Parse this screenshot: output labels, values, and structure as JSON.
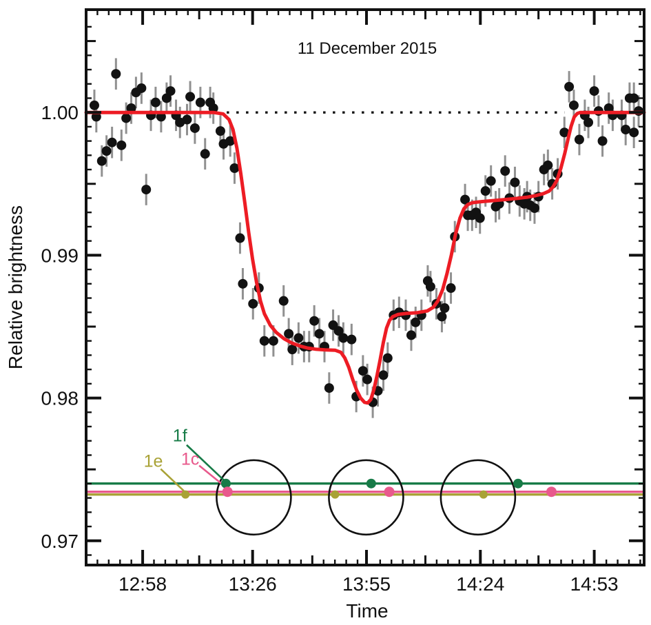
{
  "chart_data": {
    "type": "scatter",
    "title": "11 December 2015",
    "xlabel": "Time",
    "ylabel": "Relative brightness",
    "x_domain_minutes_after_1200": [
      43.6,
      185.7
    ],
    "y_domain": [
      0.9683,
      1.0072
    ],
    "x_ticks": {
      "minutes": [
        58,
        86,
        115,
        144,
        173
      ],
      "labels": [
        "12:58",
        "13:26",
        "13:55",
        "14:24",
        "14:53"
      ],
      "minor_step_minutes": 2.88
    },
    "y_ticks": {
      "values": [
        0.97,
        0.98,
        0.99,
        1.0
      ],
      "labels": [
        "0.97",
        "0.98",
        "0.99",
        "1.00"
      ],
      "minor_step": 0.001
    },
    "baseline": {
      "value": 1.0,
      "from_minute": 79.4,
      "to_minute": 165.4
    },
    "colors": {
      "model": "#ed1c24",
      "point": "#121212",
      "errorbar": "#909090",
      "frame": "#111111",
      "planet_f": "#177b47",
      "planet_c": "#e8598c",
      "planet_e": "#a9a236"
    },
    "series": [
      {
        "name": "observed",
        "kind": "scatter",
        "error": 0.0011,
        "point_radius": 7,
        "points": [
          [
            45.7,
            1.0005
          ],
          [
            46.2,
            0.9997
          ],
          [
            47.6,
            0.9966
          ],
          [
            48.8,
            0.9973
          ],
          [
            50.2,
            0.9979
          ],
          [
            51.2,
            1.0027
          ],
          [
            52.6,
            0.9977
          ],
          [
            53.8,
            0.9996
          ],
          [
            55.1,
            1.0003
          ],
          [
            56.3,
            1.0014
          ],
          [
            57.7,
            1.0017
          ],
          [
            58.9,
            0.9946
          ],
          [
            60.1,
            0.9998
          ],
          [
            61.3,
            1.0007
          ],
          [
            62.7,
            0.9997
          ],
          [
            64.1,
            1.001
          ],
          [
            65.1,
            1.0015
          ],
          [
            66.5,
            0.9998
          ],
          [
            67.5,
            0.9993
          ],
          [
            69.3,
            0.9995
          ],
          [
            70.1,
            1.0011
          ],
          [
            71.3,
            0.9989
          ],
          [
            72.7,
            1.0007
          ],
          [
            73.9,
            0.9971
          ],
          [
            75.2,
            1.0007
          ],
          [
            76.0,
            1.0003
          ],
          [
            77.8,
            0.9987
          ],
          [
            78.6,
            0.9978
          ],
          [
            80.3,
            0.998
          ],
          [
            81.4,
            0.9961
          ],
          [
            82.8,
            0.9912
          ],
          [
            83.5,
            0.988
          ],
          [
            86.1,
            0.9866
          ],
          [
            87.6,
            0.9877
          ],
          [
            89.0,
            0.984
          ],
          [
            91.3,
            0.984
          ],
          [
            93.9,
            0.9868
          ],
          [
            95.2,
            0.9845
          ],
          [
            96.1,
            0.9834
          ],
          [
            97.7,
            0.9842
          ],
          [
            99.1,
            0.9836
          ],
          [
            100.4,
            0.9836
          ],
          [
            101.7,
            0.9854
          ],
          [
            103.0,
            0.9845
          ],
          [
            104.3,
            0.9836
          ],
          [
            105.5,
            0.9807
          ],
          [
            106.5,
            0.9851
          ],
          [
            107.9,
            0.9847
          ],
          [
            109.1,
            0.9842
          ],
          [
            111.2,
            0.9841
          ],
          [
            112.4,
            0.9801
          ],
          [
            114.1,
            0.9819
          ],
          [
            115.2,
            0.9813
          ],
          [
            116.6,
            0.9797
          ],
          [
            117.9,
            0.9805
          ],
          [
            119.3,
            0.9816
          ],
          [
            120.4,
            0.9828
          ],
          [
            121.9,
            0.9858
          ],
          [
            123.3,
            0.986
          ],
          [
            125.0,
            0.9858
          ],
          [
            126.4,
            0.9844
          ],
          [
            127.5,
            0.9853
          ],
          [
            129.0,
            0.9858
          ],
          [
            130.6,
            0.9882
          ],
          [
            131.3,
            0.9878
          ],
          [
            132.8,
            0.9866
          ],
          [
            134.2,
            0.9857
          ],
          [
            134.9,
            0.9863
          ],
          [
            136.5,
            0.9877
          ],
          [
            137.5,
            0.9913
          ],
          [
            140.1,
            0.9939
          ],
          [
            140.8,
            0.9928
          ],
          [
            141.9,
            0.9928
          ],
          [
            142.9,
            0.993
          ],
          [
            143.9,
            0.9926
          ],
          [
            145.3,
            0.9945
          ],
          [
            146.7,
            0.9952
          ],
          [
            147.9,
            0.9934
          ],
          [
            148.8,
            0.9936
          ],
          [
            150.3,
            0.9959
          ],
          [
            151.4,
            0.994
          ],
          [
            152.8,
            0.9951
          ],
          [
            154.0,
            0.9938
          ],
          [
            155.2,
            0.9936
          ],
          [
            155.9,
            0.9941
          ],
          [
            156.7,
            0.9935
          ],
          [
            157.8,
            0.9933
          ],
          [
            158.8,
            0.9941
          ],
          [
            160.2,
            0.996
          ],
          [
            161.2,
            0.9963
          ],
          [
            162.3,
            0.995
          ],
          [
            163.7,
            0.9957
          ],
          [
            165.4,
            0.9986
          ],
          [
            166.6,
            1.0018
          ],
          [
            167.8,
            1.0005
          ],
          [
            169.2,
            0.9981
          ],
          [
            170.6,
            0.9998
          ],
          [
            171.5,
            0.9993
          ],
          [
            173.0,
            1.0015
          ],
          [
            174.1,
            1.0001
          ],
          [
            175.1,
            0.998
          ],
          [
            176.7,
            1.0003
          ],
          [
            177.7,
            0.9998
          ],
          [
            180.0,
            0.9998
          ],
          [
            181.0,
            0.9988
          ],
          [
            182.0,
            1.001
          ],
          [
            183.1,
            1.001
          ],
          [
            183.1,
            0.9986
          ],
          [
            184.3,
            1.0001
          ]
        ]
      },
      {
        "name": "transit-model",
        "kind": "line",
        "stroke_width": 5,
        "points": [
          [
            43.6,
            1.0
          ],
          [
            76.0,
            1.0
          ],
          [
            78.5,
            0.9999
          ],
          [
            80.0,
            0.9995
          ],
          [
            81.0,
            0.9988
          ],
          [
            82.0,
            0.9975
          ],
          [
            83.0,
            0.9957
          ],
          [
            84.0,
            0.9937
          ],
          [
            85.0,
            0.9916
          ],
          [
            86.0,
            0.9897
          ],
          [
            87.0,
            0.9881
          ],
          [
            88.0,
            0.9868
          ],
          [
            89.0,
            0.9859
          ],
          [
            90.5,
            0.9851
          ],
          [
            92.0,
            0.9846
          ],
          [
            94.0,
            0.98415
          ],
          [
            96.0,
            0.98385
          ],
          [
            98.0,
            0.98365
          ],
          [
            100.0,
            0.9835
          ],
          [
            102.0,
            0.98342
          ],
          [
            104.5,
            0.98337
          ],
          [
            107.0,
            0.98335
          ],
          [
            108.5,
            0.9832
          ],
          [
            109.5,
            0.9828
          ],
          [
            110.5,
            0.98215
          ],
          [
            111.5,
            0.9813
          ],
          [
            112.5,
            0.98055
          ],
          [
            113.5,
            0.98
          ],
          [
            114.5,
            0.9797
          ],
          [
            115.3,
            0.97965
          ],
          [
            116.1,
            0.9799
          ],
          [
            116.9,
            0.9806
          ],
          [
            117.7,
            0.9816
          ],
          [
            118.5,
            0.9827
          ],
          [
            119.3,
            0.9839
          ],
          [
            120.1,
            0.9849
          ],
          [
            120.9,
            0.98545
          ],
          [
            121.7,
            0.9857
          ],
          [
            123.0,
            0.98585
          ],
          [
            125.0,
            0.98592
          ],
          [
            128.0,
            0.98598
          ],
          [
            130.5,
            0.9861
          ],
          [
            132.0,
            0.98635
          ],
          [
            133.2,
            0.9868
          ],
          [
            134.4,
            0.9876
          ],
          [
            135.5,
            0.9887
          ],
          [
            136.6,
            0.99
          ],
          [
            137.7,
            0.9915
          ],
          [
            138.8,
            0.9926
          ],
          [
            139.8,
            0.99325
          ],
          [
            140.8,
            0.99355
          ],
          [
            142.0,
            0.99368
          ],
          [
            144.0,
            0.99375
          ],
          [
            147.0,
            0.99382
          ],
          [
            150.0,
            0.99389
          ],
          [
            153.0,
            0.99397
          ],
          [
            156.0,
            0.99407
          ],
          [
            158.0,
            0.99417
          ],
          [
            160.0,
            0.99431
          ],
          [
            161.5,
            0.99449
          ],
          [
            162.5,
            0.99478
          ],
          [
            163.5,
            0.99525
          ],
          [
            164.5,
            0.9961
          ],
          [
            165.5,
            0.99715
          ],
          [
            166.3,
            0.9981
          ],
          [
            167.1,
            0.99903
          ],
          [
            167.9,
            0.99968
          ],
          [
            168.7,
            0.99993
          ],
          [
            169.5,
            1.0
          ],
          [
            185.7,
            1.0
          ]
        ]
      }
    ],
    "overlay": {
      "planets": [
        {
          "id": "1f",
          "label": "1f",
          "line_v": 0.97401,
          "dot_radius": 7,
          "dot_times": [
            79.2,
            116.2,
            153.6
          ],
          "color": "#177b47"
        },
        {
          "id": "1c",
          "label": "1c",
          "line_v": 0.97343,
          "dot_radius": 7.5,
          "dot_times": [
            79.6,
            120.8,
            162.1
          ],
          "color": "#e8598c"
        },
        {
          "id": "1e",
          "label": "1e",
          "line_v": 0.97324,
          "dot_radius": 6,
          "dot_times": [
            68.9,
            107.0,
            144.8
          ],
          "color": "#a9a236"
        }
      ],
      "star_circles": {
        "times": [
          86.3,
          114.9,
          143.4
        ],
        "v_center": 0.97304,
        "radius_px": 54
      },
      "annotations": [
        {
          "text": "1f",
          "t": 67.5,
          "v": 0.97739,
          "color": "#177b47",
          "leader": [
            69.2,
            0.97671,
            79.0,
            0.97416
          ]
        },
        {
          "text": "1c",
          "t": 70.1,
          "v": 0.97575,
          "color": "#e8598c",
          "leader": [
            72.4,
            0.97527,
            79.5,
            0.97368
          ]
        },
        {
          "text": "1e",
          "t": 60.7,
          "v": 0.9756,
          "color": "#a9a236",
          "leader": [
            62.6,
            0.97503,
            68.5,
            0.97349
          ]
        }
      ]
    }
  }
}
